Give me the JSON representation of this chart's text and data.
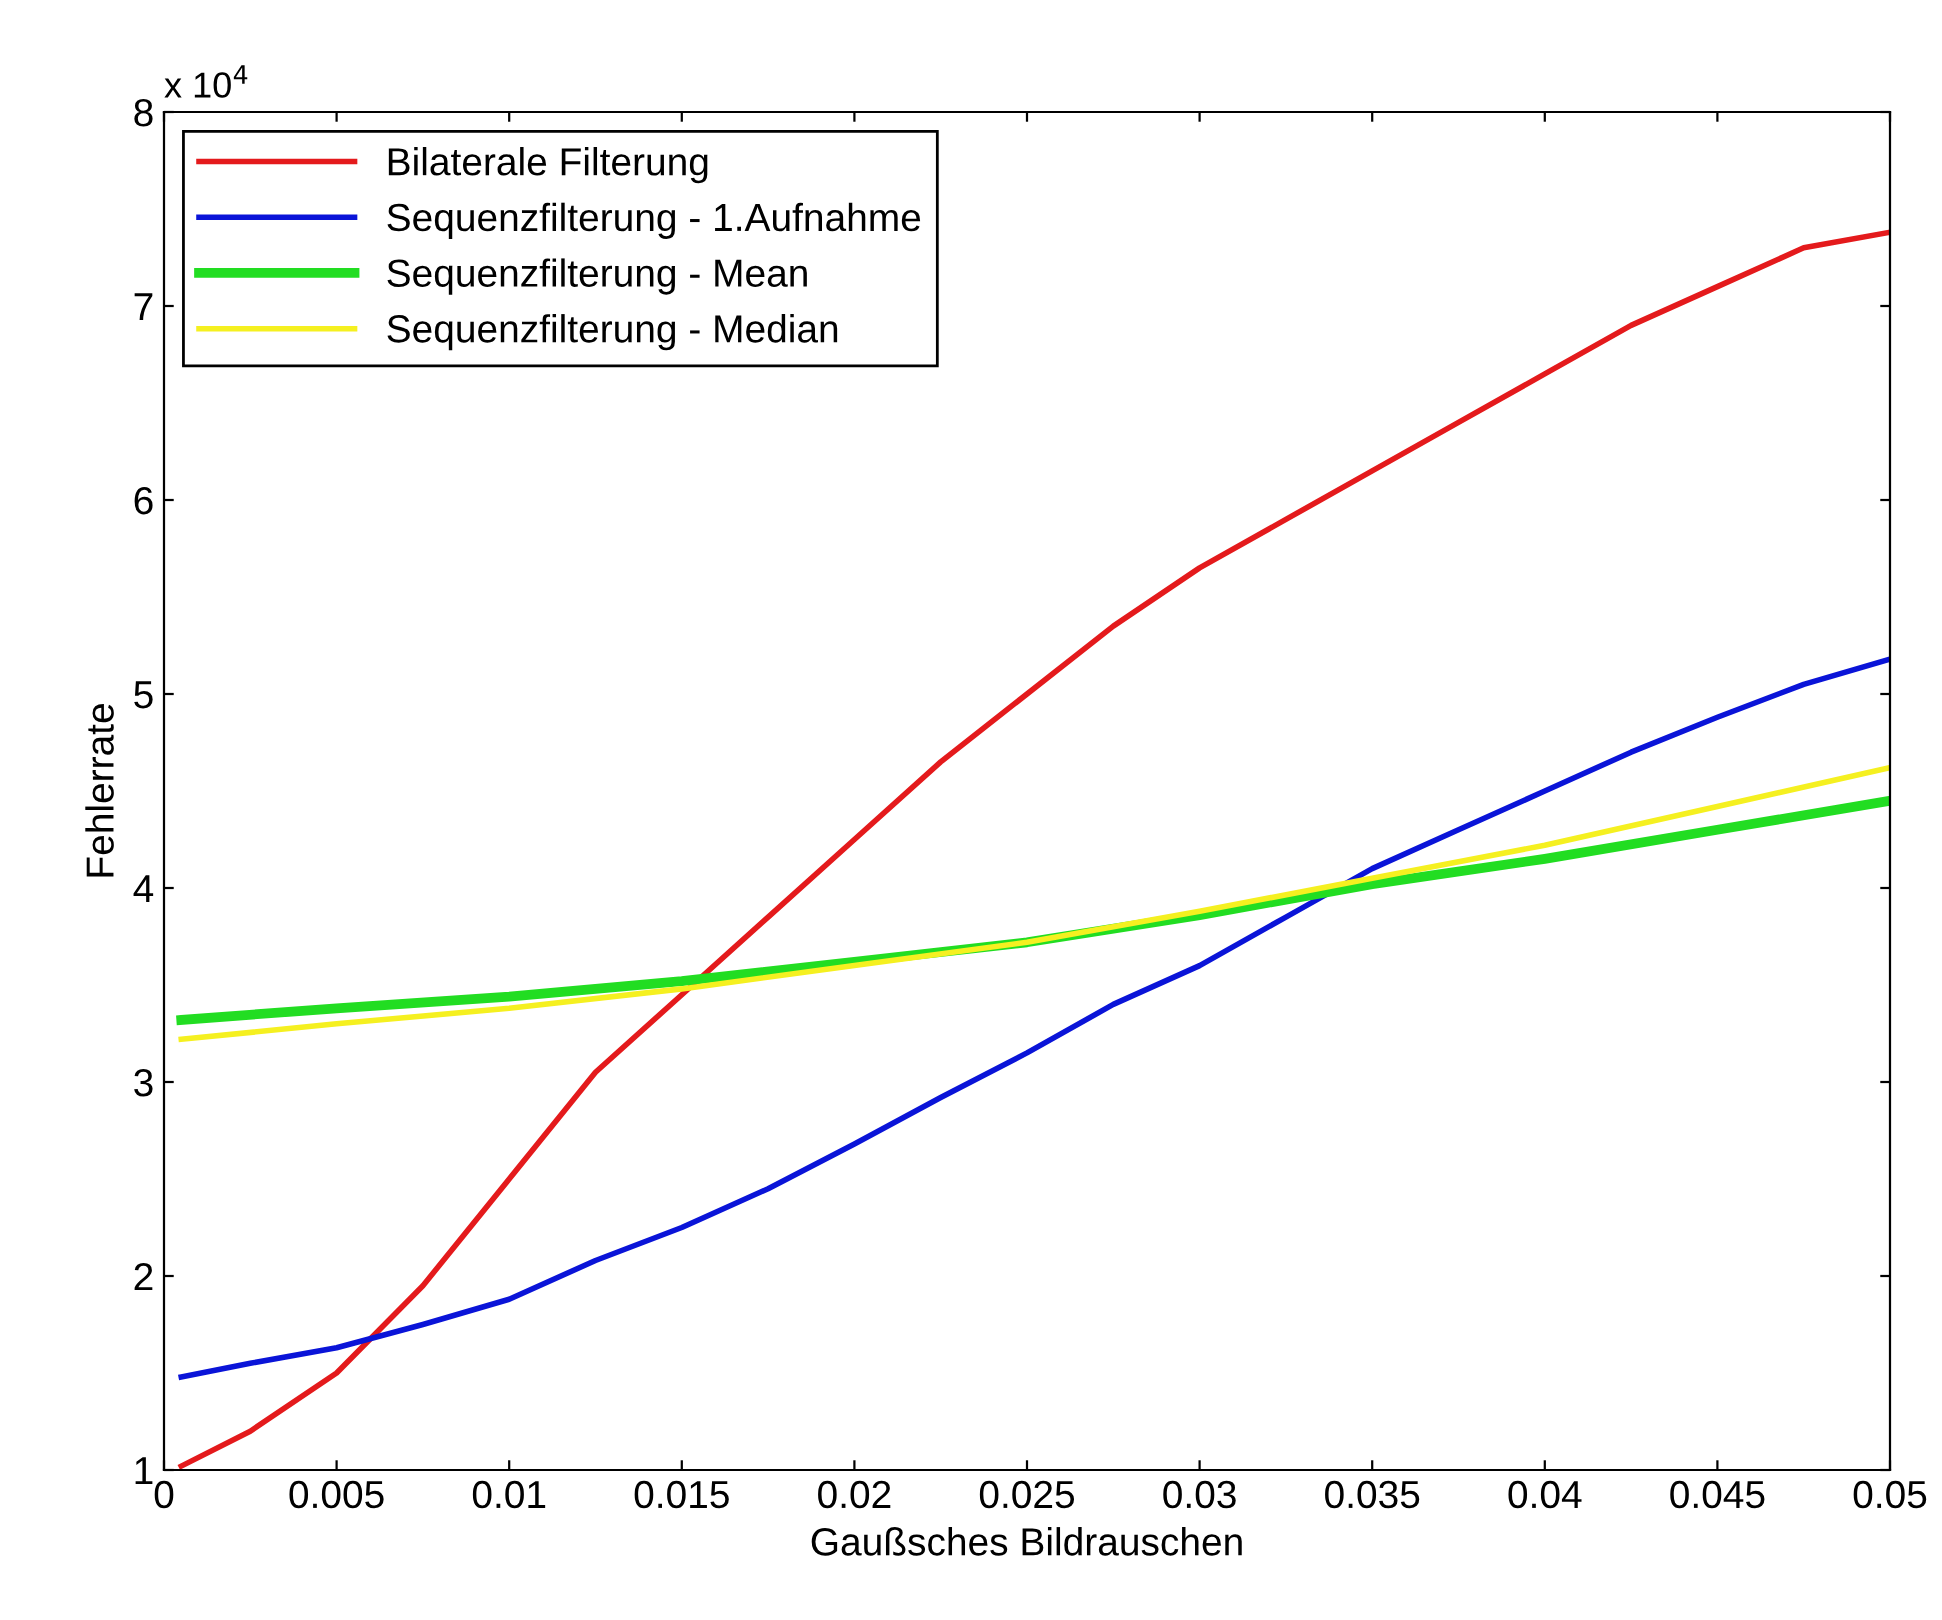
{
  "chart_data": {
    "type": "line",
    "xlabel": "Gaußsches Bildrauschen",
    "ylabel": "Fehlerrate",
    "annotations": [
      "x 10$^{4}$"
    ],
    "xlim": [
      0,
      0.05
    ],
    "xticks": [
      0,
      0.005,
      0.01,
      0.015,
      0.02,
      0.025,
      0.03,
      0.035,
      0.04,
      0.045,
      0.05
    ],
    "ylim": [
      1,
      8
    ],
    "yticks": [
      1,
      2,
      3,
      4,
      5,
      6,
      7,
      8
    ],
    "grid": false,
    "legend": "top left",
    "marker": "none",
    "line_style": "solid",
    "series": [
      {
        "name": "Bilaterale Filterung",
        "color": "#e41a1c",
        "x": [
          0.0005,
          0.0025,
          0.005,
          0.0075,
          0.01,
          0.0125,
          0.015,
          0.0175,
          0.02,
          0.0225,
          0.025,
          0.0275,
          0.03,
          0.0325,
          0.035,
          0.0375,
          0.04,
          0.0425,
          0.045,
          0.0475,
          0.05
        ],
        "values": [
          1.02,
          1.2,
          1.5,
          1.95,
          2.5,
          3.05,
          3.45,
          3.85,
          4.25,
          4.65,
          5.0,
          5.35,
          5.65,
          5.9,
          6.15,
          6.4,
          6.65,
          6.9,
          7.1,
          7.3,
          7.38
        ]
      },
      {
        "name": "Sequenzfilterung - 1.Aufnahme",
        "color": "#0a14d8",
        "x": [
          0.0005,
          0.0025,
          0.005,
          0.0075,
          0.01,
          0.0125,
          0.015,
          0.0175,
          0.02,
          0.0225,
          0.025,
          0.0275,
          0.03,
          0.0325,
          0.035,
          0.0375,
          0.04,
          0.0425,
          0.045,
          0.0475,
          0.05
        ],
        "values": [
          1.48,
          1.55,
          1.63,
          1.75,
          1.88,
          2.08,
          2.25,
          2.45,
          2.68,
          2.92,
          3.15,
          3.4,
          3.6,
          3.85,
          4.1,
          4.3,
          4.5,
          4.7,
          4.88,
          5.05,
          5.18
        ]
      },
      {
        "name": "Sequenzfilterung - Mean",
        "color": "#22dd22",
        "x": [
          0.0005,
          0.005,
          0.01,
          0.015,
          0.02,
          0.025,
          0.03,
          0.035,
          0.04,
          0.045,
          0.05
        ],
        "values": [
          3.32,
          3.38,
          3.44,
          3.52,
          3.62,
          3.72,
          3.86,
          4.02,
          4.15,
          4.3,
          4.45
        ]
      },
      {
        "name": "Sequenzfilterung - Median",
        "color": "#f5f020",
        "x": [
          0.0005,
          0.005,
          0.01,
          0.015,
          0.02,
          0.025,
          0.03,
          0.035,
          0.04,
          0.045,
          0.05
        ],
        "values": [
          3.22,
          3.3,
          3.38,
          3.48,
          3.6,
          3.72,
          3.88,
          4.05,
          4.22,
          4.42,
          4.62
        ]
      }
    ]
  }
}
